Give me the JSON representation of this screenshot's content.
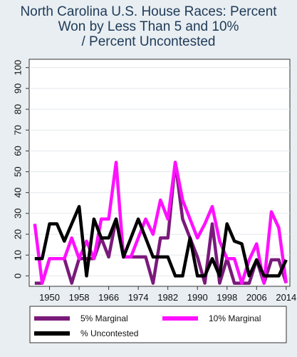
{
  "chart_data": {
    "type": "line",
    "title_lines": [
      "North Carolina U.S. House Races: Percent",
      "Won by Less Than 5 and 10%",
      "/ Percent Uncontested"
    ],
    "x": [
      1946,
      1948,
      1950,
      1952,
      1954,
      1956,
      1958,
      1960,
      1962,
      1964,
      1966,
      1968,
      1970,
      1972,
      1974,
      1976,
      1978,
      1980,
      1982,
      1984,
      1986,
      1988,
      1990,
      1992,
      1994,
      1996,
      1998,
      2000,
      2002,
      2004,
      2006,
      2008,
      2010,
      2012,
      2014
    ],
    "x_ticks": [
      1950,
      1958,
      1966,
      1974,
      1982,
      1990,
      1998,
      2006,
      2014
    ],
    "y_ticks": [
      0,
      10,
      20,
      30,
      40,
      50,
      60,
      70,
      80,
      90,
      100
    ],
    "xlim": [
      1944.5,
      2015
    ],
    "ylim": [
      -5,
      104
    ],
    "grid": "horizontal",
    "legend_position": "bottom",
    "series": [
      {
        "name": "5% Marginal",
        "color": "#7a1a7a",
        "values": [
          -3.5,
          -3.5,
          8.3,
          8.3,
          8.3,
          -3.5,
          8.3,
          8.3,
          8.3,
          18.2,
          9.1,
          27.3,
          9.1,
          9.1,
          9.1,
          9.1,
          -3.5,
          18.2,
          18.2,
          54.5,
          27.3,
          18.2,
          9.1,
          -3.5,
          25,
          -3.5,
          8.3,
          -3.5,
          -3.5,
          -3.5,
          7.7,
          -3.5,
          7.7,
          7.7,
          -3.5
        ]
      },
      {
        "name": "10% Marginal",
        "color": "#ff10ff",
        "values": [
          25,
          -3.5,
          8.3,
          8.3,
          8.3,
          18.2,
          8.3,
          16.7,
          8.3,
          27.3,
          27.3,
          54.5,
          9.1,
          9.1,
          18.2,
          27.3,
          20,
          36.4,
          27.3,
          54.5,
          36.4,
          27.3,
          18.2,
          25,
          33.3,
          16.7,
          8.3,
          8.3,
          -3.5,
          7.7,
          15.4,
          -3.5,
          30.8,
          23.1,
          -3.5
        ]
      },
      {
        "name": "% Uncontested",
        "color": "#000000",
        "values": [
          8.3,
          8.3,
          25,
          25,
          16.7,
          25,
          33.3,
          0,
          27.3,
          18.2,
          18.2,
          27.3,
          9.1,
          18.2,
          27.3,
          18.2,
          9.1,
          9.1,
          9.1,
          0,
          0,
          18.2,
          0,
          0,
          8.3,
          0,
          25,
          16.7,
          15.4,
          0,
          7.7,
          0,
          0,
          0,
          7.7
        ]
      }
    ]
  }
}
